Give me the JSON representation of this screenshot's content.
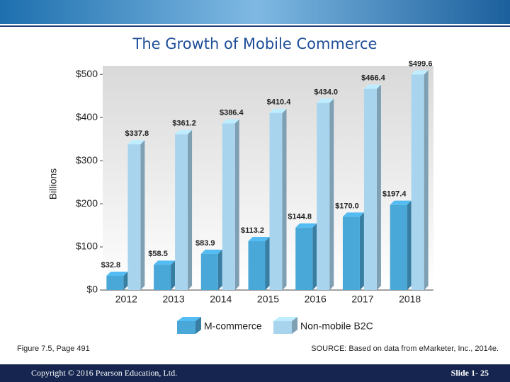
{
  "chart_data": {
    "type": "bar3d",
    "title": "The Growth of Mobile Commerce",
    "y_label": "Billions",
    "categories": [
      "2012",
      "2013",
      "2014",
      "2015",
      "2016",
      "2017",
      "2018"
    ],
    "series": [
      {
        "name": "M-commerce",
        "color": "#4aa8d8",
        "values": [
          32.8,
          58.5,
          83.9,
          113.2,
          144.8,
          170.0,
          197.4
        ],
        "value_labels": [
          "$32.8",
          "$58.5",
          "$83.9",
          "$113.2",
          "$144.8",
          "$170.0",
          "$197.4"
        ]
      },
      {
        "name": "Non-mobile B2C",
        "color": "#a9d4ee",
        "values": [
          337.8,
          361.2,
          386.4,
          410.4,
          434.0,
          466.4,
          499.6
        ],
        "value_labels": [
          "$337.8",
          "$361.2",
          "$386.4",
          "$410.4",
          "$434.0",
          "$466.4",
          "$499.6"
        ]
      }
    ],
    "ylim": [
      0,
      520
    ],
    "yticks": [
      {
        "value": 0,
        "label": "$0"
      },
      {
        "value": 100,
        "label": "$100"
      },
      {
        "value": 200,
        "label": "$200"
      },
      {
        "value": 300,
        "label": "$300"
      },
      {
        "value": 400,
        "label": "$400"
      },
      {
        "value": 500,
        "label": "$500"
      }
    ],
    "legend": "bottom"
  },
  "caption": "Figure 7.5, Page 491",
  "source": "SOURCE: Based on data from eMarketer, Inc., 2014e.",
  "footer": {
    "copyright": "Copyright © 2016 Pearson Education, Ltd.",
    "slide": "Slide 1- 25"
  }
}
